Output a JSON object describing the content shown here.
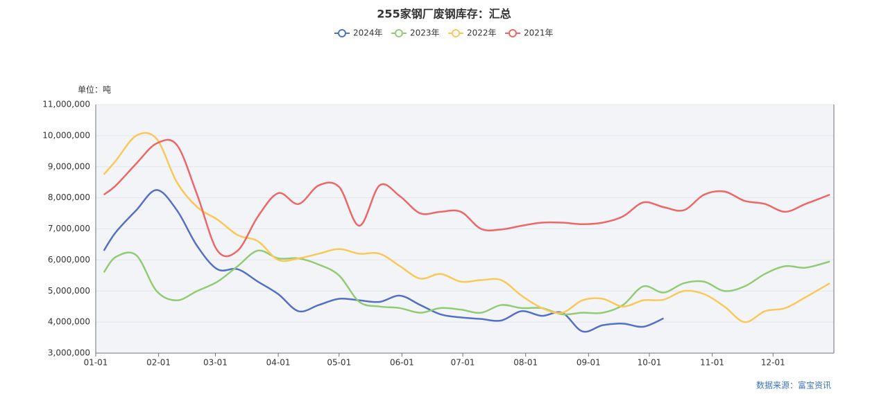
{
  "chart_data": {
    "type": "line",
    "title": "255家钢厂废钢库存：汇总",
    "y_unit_label": "单位：吨",
    "source": "数据来源：富宝资讯",
    "x": [
      "01-05",
      "01-11",
      "01-21",
      "01-31",
      "02-10",
      "02-20",
      "03-02",
      "03-12",
      "03-22",
      "04-01",
      "04-11",
      "04-21",
      "05-01",
      "05-11",
      "05-21",
      "05-31",
      "06-10",
      "06-20",
      "06-30",
      "07-10",
      "07-20",
      "07-30",
      "08-09",
      "08-19",
      "08-29",
      "09-08",
      "09-18",
      "09-28",
      "10-08",
      "10-18",
      "10-28",
      "11-07",
      "11-17",
      "11-27",
      "12-07",
      "12-17",
      "12-29"
    ],
    "xlim": [
      "01-01",
      "12-31"
    ],
    "xticks": [
      "01-01",
      "02-01",
      "03-01",
      "04-01",
      "05-01",
      "06-01",
      "07-01",
      "08-01",
      "09-01",
      "10-01",
      "11-01",
      "12-01"
    ],
    "ylim": [
      3000000,
      11000000
    ],
    "yticks": [
      {
        "value": 3000000,
        "label": "3,000,000"
      },
      {
        "value": 4000000,
        "label": "4,000,000"
      },
      {
        "value": 5000000,
        "label": "5,000,000"
      },
      {
        "value": 6000000,
        "label": "6,000,000"
      },
      {
        "value": 7000000,
        "label": "7,000,000"
      },
      {
        "value": 8000000,
        "label": "8,000,000"
      },
      {
        "value": 9000000,
        "label": "9,000,000"
      },
      {
        "value": 10000000,
        "label": "10,000,000"
      },
      {
        "value": 11000000,
        "label": "11,000,000"
      }
    ],
    "grid": true,
    "series": [
      {
        "name": "2024年",
        "color": "#5470c6",
        "values": [
          6300000,
          6900000,
          7600000,
          8250000,
          7600000,
          6450000,
          5700000,
          5700000,
          5300000,
          4900000,
          4350000,
          4550000,
          4750000,
          4700000,
          4650000,
          4850000,
          4550000,
          4250000,
          4150000,
          4100000,
          4050000,
          4350000,
          4200000,
          4300000,
          3700000,
          3900000,
          3950000,
          3850000,
          4120000,
          null,
          null,
          null,
          null,
          null,
          null,
          null,
          null
        ]
      },
      {
        "name": "2023年",
        "color": "#91cc75",
        "values": [
          5600000,
          6100000,
          6150000,
          5000000,
          4700000,
          5000000,
          5300000,
          5800000,
          6300000,
          6050000,
          6050000,
          5850000,
          5500000,
          4650000,
          4500000,
          4450000,
          4300000,
          4450000,
          4400000,
          4300000,
          4550000,
          4450000,
          4450000,
          4250000,
          4300000,
          4300000,
          4550000,
          5150000,
          4950000,
          5250000,
          5300000,
          5000000,
          5150000,
          5550000,
          5800000,
          5750000,
          5950000
        ]
      },
      {
        "name": "2022年",
        "color": "#fac858",
        "values": [
          8750000,
          9200000,
          10000000,
          9900000,
          8500000,
          7700000,
          7300000,
          6800000,
          6600000,
          6000000,
          6050000,
          6200000,
          6350000,
          6200000,
          6200000,
          5800000,
          5400000,
          5550000,
          5300000,
          5350000,
          5350000,
          4850000,
          4450000,
          4300000,
          4700000,
          4750000,
          4500000,
          4700000,
          4720000,
          5000000,
          4900000,
          4500000,
          4000000,
          4350000,
          4450000,
          4800000,
          5250000
        ]
      },
      {
        "name": "2021年",
        "color": "#ee6666",
        "values": [
          8100000,
          8400000,
          9100000,
          9750000,
          9700000,
          8100000,
          6300000,
          6300000,
          7400000,
          8150000,
          7800000,
          8400000,
          8350000,
          7100000,
          8400000,
          8050000,
          7500000,
          7550000,
          7550000,
          7000000,
          6980000,
          7100000,
          7200000,
          7200000,
          7150000,
          7200000,
          7400000,
          7850000,
          7700000,
          7600000,
          8100000,
          8200000,
          7900000,
          7800000,
          7550000,
          7800000,
          8100000
        ]
      }
    ]
  }
}
